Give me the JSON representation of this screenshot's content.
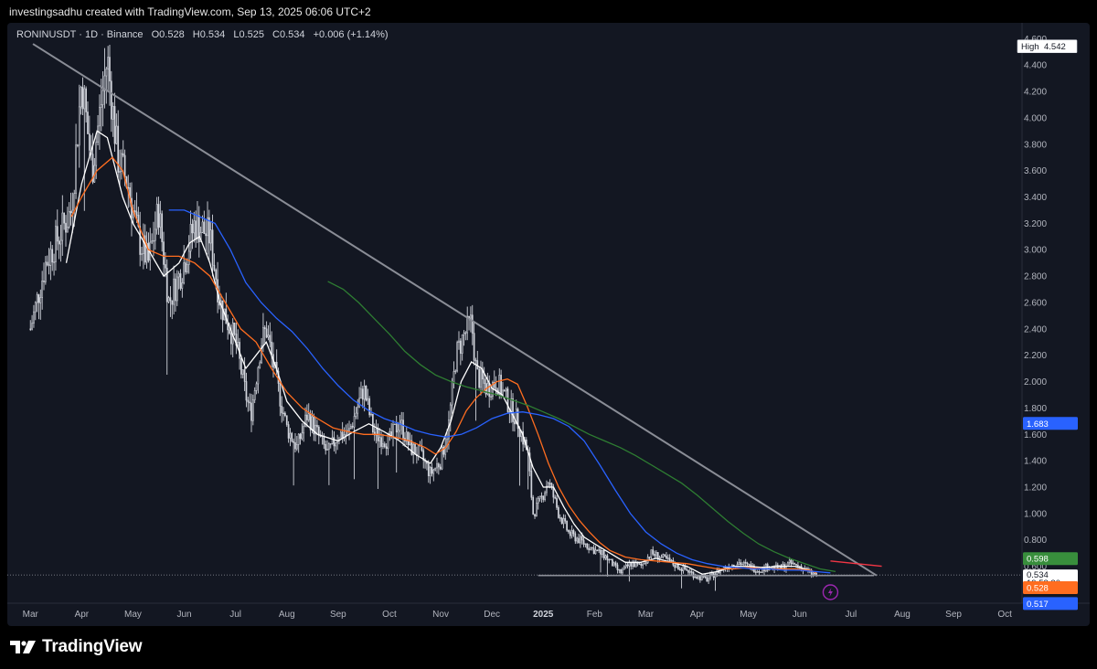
{
  "credit": "investingsadhu created with TradingView.com, Sep 13, 2025 06:06 UTC+2",
  "legend": {
    "symbol": "RONINUSDT · 1D · Binance",
    "open": "O0.528",
    "high": "H0.534",
    "low": "L0.525",
    "close": "C0.534",
    "change": "+0.006 (+1.14%)"
  },
  "brand": {
    "name": "TradingView"
  },
  "colors": {
    "background": "#131722",
    "candle": "#d1d4dc",
    "ma_short": "#ffffff",
    "ma_orange": "#ff6d1f",
    "ma_blue": "#2962ff",
    "ma_green": "#2e7d32",
    "trendline": "#8a8d96",
    "resistance_red": "#f23645"
  },
  "chart_data": {
    "type": "candlestick",
    "symbol": "RONINUSDT",
    "timeframe": "1D",
    "exchange": "Binance",
    "ylim": [
      0.32,
      4.72
    ],
    "y_ticks": [
      "4.600",
      "4.400",
      "4.200",
      "4.000",
      "3.800",
      "3.600",
      "3.400",
      "3.200",
      "3.000",
      "2.800",
      "2.600",
      "2.400",
      "2.200",
      "2.000",
      "1.800",
      "1.600",
      "1.400",
      "1.200",
      "1.000",
      "0.800",
      "0.600"
    ],
    "x_ticks": [
      "Mar",
      "Apr",
      "May",
      "Jun",
      "Jul",
      "Aug",
      "Sep",
      "Oct",
      "Nov",
      "Dec",
      "2025",
      "Feb",
      "Mar",
      "Apr",
      "May",
      "Jun",
      "Jul",
      "Aug",
      "Sep",
      "Oct"
    ],
    "x_tick_bold": "2025",
    "x_range_months": [
      -0.45,
      19.3
    ],
    "price_path": [
      [
        0,
        2.4
      ],
      [
        0.3,
        2.9
      ],
      [
        0.55,
        3.1
      ],
      [
        0.8,
        3.3
      ],
      [
        1.0,
        4.3
      ],
      [
        1.2,
        3.6
      ],
      [
        1.5,
        4.45
      ],
      [
        1.7,
        3.7
      ],
      [
        1.9,
        3.5
      ],
      [
        2.1,
        3.1
      ],
      [
        2.3,
        2.9
      ],
      [
        2.5,
        3.3
      ],
      [
        2.7,
        2.6
      ],
      [
        3.0,
        2.9
      ],
      [
        3.2,
        3.2
      ],
      [
        3.5,
        3.1
      ],
      [
        3.7,
        2.6
      ],
      [
        4.0,
        2.3
      ],
      [
        4.2,
        1.9
      ],
      [
        4.3,
        1.75
      ],
      [
        4.5,
        2.3
      ],
      [
        4.6,
        2.4
      ],
      [
        4.8,
        2.0
      ],
      [
        5.0,
        1.65
      ],
      [
        5.2,
        1.5
      ],
      [
        5.4,
        1.75
      ],
      [
        5.6,
        1.6
      ],
      [
        5.8,
        1.45
      ],
      [
        6.0,
        1.6
      ],
      [
        6.2,
        1.6
      ],
      [
        6.5,
        1.95
      ],
      [
        6.7,
        1.6
      ],
      [
        7.0,
        1.55
      ],
      [
        7.2,
        1.7
      ],
      [
        7.4,
        1.5
      ],
      [
        7.6,
        1.45
      ],
      [
        7.8,
        1.3
      ],
      [
        8.0,
        1.4
      ],
      [
        8.15,
        1.65
      ],
      [
        8.3,
        2.2
      ],
      [
        8.45,
        2.35
      ],
      [
        8.6,
        2.45
      ],
      [
        8.7,
        2.05
      ],
      [
        8.9,
        1.95
      ],
      [
        9.1,
        2.0
      ],
      [
        9.3,
        1.85
      ],
      [
        9.5,
        1.7
      ],
      [
        9.7,
        1.45
      ],
      [
        9.8,
        1.0
      ],
      [
        9.95,
        1.1
      ],
      [
        10.1,
        1.25
      ],
      [
        10.3,
        1.0
      ],
      [
        10.5,
        0.85
      ],
      [
        10.7,
        0.8
      ],
      [
        11.0,
        0.72
      ],
      [
        11.2,
        0.68
      ],
      [
        11.5,
        0.55
      ],
      [
        11.7,
        0.62
      ],
      [
        11.9,
        0.6
      ],
      [
        12.1,
        0.7
      ],
      [
        12.4,
        0.65
      ],
      [
        12.6,
        0.6
      ],
      [
        12.8,
        0.57
      ],
      [
        13.0,
        0.52
      ],
      [
        13.2,
        0.5
      ],
      [
        13.4,
        0.56
      ],
      [
        13.6,
        0.6
      ],
      [
        13.8,
        0.63
      ],
      [
        14.0,
        0.6
      ],
      [
        14.2,
        0.57
      ],
      [
        14.4,
        0.6
      ],
      [
        14.6,
        0.58
      ],
      [
        14.8,
        0.62
      ],
      [
        15.0,
        0.6
      ],
      [
        15.2,
        0.55
      ],
      [
        15.33,
        0.534
      ]
    ],
    "moving_averages": [
      {
        "color": "white",
        "path": [
          [
            0.7,
            2.9
          ],
          [
            1.0,
            3.5
          ],
          [
            1.3,
            3.9
          ],
          [
            1.5,
            3.85
          ],
          [
            1.8,
            3.4
          ],
          [
            2.0,
            3.2
          ],
          [
            2.3,
            3.0
          ],
          [
            2.6,
            2.8
          ],
          [
            2.9,
            2.9
          ],
          [
            3.1,
            3.05
          ],
          [
            3.3,
            3.1
          ],
          [
            3.5,
            2.9
          ],
          [
            3.7,
            2.6
          ],
          [
            4.0,
            2.3
          ],
          [
            4.2,
            2.1
          ],
          [
            4.4,
            2.2
          ],
          [
            4.6,
            2.3
          ],
          [
            4.8,
            2.1
          ],
          [
            5.0,
            1.85
          ],
          [
            5.3,
            1.7
          ],
          [
            5.6,
            1.6
          ],
          [
            6.0,
            1.55
          ],
          [
            6.3,
            1.62
          ],
          [
            6.6,
            1.68
          ],
          [
            6.9,
            1.62
          ],
          [
            7.2,
            1.55
          ],
          [
            7.5,
            1.45
          ],
          [
            7.8,
            1.38
          ],
          [
            8.0,
            1.5
          ],
          [
            8.2,
            1.7
          ],
          [
            8.4,
            2.0
          ],
          [
            8.6,
            2.15
          ],
          [
            8.8,
            2.1
          ],
          [
            9.0,
            1.95
          ],
          [
            9.2,
            1.9
          ],
          [
            9.4,
            1.75
          ],
          [
            9.6,
            1.6
          ],
          [
            9.8,
            1.35
          ],
          [
            10.0,
            1.2
          ],
          [
            10.2,
            1.2
          ],
          [
            10.4,
            1.05
          ],
          [
            10.6,
            0.92
          ],
          [
            10.8,
            0.82
          ],
          [
            11.0,
            0.77
          ],
          [
            11.3,
            0.7
          ],
          [
            11.6,
            0.63
          ],
          [
            11.9,
            0.63
          ],
          [
            12.2,
            0.66
          ],
          [
            12.5,
            0.63
          ],
          [
            12.8,
            0.6
          ],
          [
            13.1,
            0.54
          ],
          [
            13.4,
            0.56
          ],
          [
            13.7,
            0.6
          ],
          [
            14.0,
            0.6
          ],
          [
            14.3,
            0.59
          ],
          [
            14.6,
            0.6
          ],
          [
            14.9,
            0.6
          ],
          [
            15.2,
            0.57
          ],
          [
            15.33,
            0.55
          ]
        ]
      },
      {
        "color": "orange",
        "path": [
          [
            0.8,
            3.25
          ],
          [
            1.0,
            3.4
          ],
          [
            1.3,
            3.6
          ],
          [
            1.6,
            3.7
          ],
          [
            1.8,
            3.6
          ],
          [
            2.0,
            3.3
          ],
          [
            2.3,
            3.0
          ],
          [
            2.6,
            2.95
          ],
          [
            2.9,
            2.95
          ],
          [
            3.2,
            2.9
          ],
          [
            3.5,
            2.8
          ],
          [
            3.8,
            2.6
          ],
          [
            4.1,
            2.4
          ],
          [
            4.4,
            2.3
          ],
          [
            4.7,
            2.1
          ],
          [
            5.0,
            1.92
          ],
          [
            5.3,
            1.8
          ],
          [
            5.6,
            1.72
          ],
          [
            5.9,
            1.65
          ],
          [
            6.2,
            1.62
          ],
          [
            6.5,
            1.6
          ],
          [
            6.8,
            1.6
          ],
          [
            7.1,
            1.58
          ],
          [
            7.4,
            1.55
          ],
          [
            7.7,
            1.5
          ],
          [
            7.9,
            1.45
          ],
          [
            8.1,
            1.5
          ],
          [
            8.3,
            1.62
          ],
          [
            8.5,
            1.78
          ],
          [
            8.7,
            1.88
          ],
          [
            8.9,
            1.95
          ],
          [
            9.1,
            2.0
          ],
          [
            9.3,
            2.02
          ],
          [
            9.5,
            1.98
          ],
          [
            9.7,
            1.8
          ],
          [
            9.9,
            1.6
          ],
          [
            10.1,
            1.38
          ],
          [
            10.3,
            1.2
          ],
          [
            10.5,
            1.06
          ],
          [
            10.7,
            0.95
          ],
          [
            10.9,
            0.86
          ],
          [
            11.1,
            0.78
          ],
          [
            11.3,
            0.72
          ],
          [
            11.6,
            0.67
          ],
          [
            11.9,
            0.65
          ],
          [
            12.2,
            0.64
          ],
          [
            12.5,
            0.63
          ],
          [
            12.8,
            0.62
          ],
          [
            13.1,
            0.6
          ],
          [
            13.4,
            0.58
          ],
          [
            13.7,
            0.58
          ],
          [
            14.0,
            0.59
          ],
          [
            14.3,
            0.58
          ],
          [
            14.6,
            0.58
          ],
          [
            14.9,
            0.58
          ],
          [
            15.2,
            0.57
          ],
          [
            15.33,
            0.55
          ]
        ]
      },
      {
        "color": "blue",
        "path": [
          [
            2.7,
            3.3
          ],
          [
            3.0,
            3.3
          ],
          [
            3.3,
            3.25
          ],
          [
            3.6,
            3.2
          ],
          [
            3.9,
            3.0
          ],
          [
            4.2,
            2.75
          ],
          [
            4.5,
            2.6
          ],
          [
            4.8,
            2.48
          ],
          [
            5.1,
            2.38
          ],
          [
            5.4,
            2.25
          ],
          [
            5.7,
            2.1
          ],
          [
            6.0,
            1.97
          ],
          [
            6.3,
            1.86
          ],
          [
            6.6,
            1.78
          ],
          [
            6.9,
            1.72
          ],
          [
            7.2,
            1.68
          ],
          [
            7.5,
            1.63
          ],
          [
            7.8,
            1.6
          ],
          [
            8.1,
            1.58
          ],
          [
            8.4,
            1.6
          ],
          [
            8.7,
            1.65
          ],
          [
            9.0,
            1.72
          ],
          [
            9.3,
            1.76
          ],
          [
            9.6,
            1.77
          ],
          [
            9.9,
            1.75
          ],
          [
            10.2,
            1.72
          ],
          [
            10.5,
            1.66
          ],
          [
            10.8,
            1.55
          ],
          [
            11.1,
            1.37
          ],
          [
            11.4,
            1.18
          ],
          [
            11.7,
            1.0
          ],
          [
            12.0,
            0.86
          ],
          [
            12.3,
            0.77
          ],
          [
            12.6,
            0.7
          ],
          [
            12.9,
            0.65
          ],
          [
            13.2,
            0.62
          ],
          [
            13.5,
            0.6
          ],
          [
            13.8,
            0.59
          ],
          [
            14.1,
            0.58
          ],
          [
            14.4,
            0.58
          ],
          [
            14.7,
            0.57
          ],
          [
            15.0,
            0.57
          ],
          [
            15.3,
            0.56
          ],
          [
            15.6,
            0.55
          ]
        ]
      },
      {
        "color": "green",
        "path": [
          [
            5.8,
            2.76
          ],
          [
            6.1,
            2.7
          ],
          [
            6.4,
            2.6
          ],
          [
            6.7,
            2.48
          ],
          [
            7.0,
            2.36
          ],
          [
            7.3,
            2.23
          ],
          [
            7.6,
            2.13
          ],
          [
            7.9,
            2.05
          ],
          [
            8.2,
            2.0
          ],
          [
            8.5,
            1.96
          ],
          [
            8.8,
            1.93
          ],
          [
            9.1,
            1.9
          ],
          [
            9.4,
            1.86
          ],
          [
            9.7,
            1.82
          ],
          [
            10.0,
            1.77
          ],
          [
            10.3,
            1.72
          ],
          [
            10.6,
            1.66
          ],
          [
            10.9,
            1.6
          ],
          [
            11.2,
            1.55
          ],
          [
            11.5,
            1.5
          ],
          [
            11.8,
            1.44
          ],
          [
            12.1,
            1.37
          ],
          [
            12.4,
            1.3
          ],
          [
            12.7,
            1.23
          ],
          [
            13.0,
            1.14
          ],
          [
            13.3,
            1.04
          ],
          [
            13.6,
            0.94
          ],
          [
            13.9,
            0.85
          ],
          [
            14.2,
            0.77
          ],
          [
            14.5,
            0.71
          ],
          [
            14.8,
            0.66
          ],
          [
            15.1,
            0.62
          ],
          [
            15.4,
            0.58
          ],
          [
            15.7,
            0.56
          ]
        ]
      }
    ],
    "trendline_descending": [
      [
        0.05,
        4.56
      ],
      [
        16.5,
        0.53
      ]
    ],
    "support_line": [
      [
        9.9,
        0.53
      ],
      [
        16.45,
        0.53
      ]
    ],
    "red_line": [
      [
        15.6,
        0.64
      ],
      [
        16.6,
        0.6
      ]
    ],
    "right_tags": {
      "high": {
        "label": "High",
        "value": "4.542"
      },
      "blue": {
        "value": "1.683"
      },
      "green": {
        "value": "0.598"
      },
      "last": {
        "value": "0.534",
        "countdown": "19:53:30"
      },
      "orange": {
        "value": "0.528"
      },
      "blue2": {
        "value": "0.517"
      }
    },
    "last_price": 0.534
  }
}
